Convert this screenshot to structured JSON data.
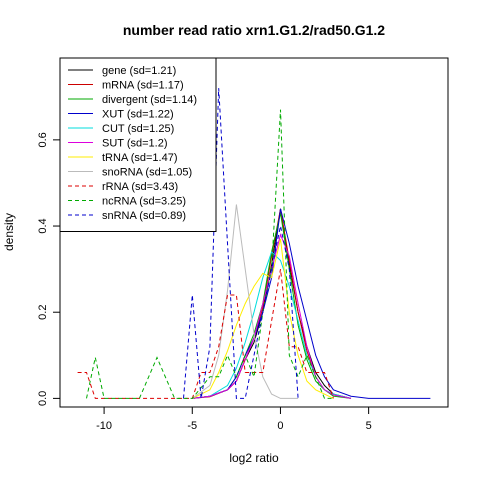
{
  "chart_data": {
    "type": "line",
    "title": "number read ratio xrn1.G1.2/rad50.G1.2",
    "xlabel": "log2 ratio",
    "ylabel": "density",
    "xlim": [
      -12.5,
      9.5
    ],
    "ylim": [
      -0.02,
      0.79
    ],
    "xticks": [
      -10,
      -5,
      0,
      5
    ],
    "xtick_labels": [
      "-10",
      "-5",
      "0",
      "5"
    ],
    "yticks": [
      0.0,
      0.2,
      0.4,
      0.6
    ],
    "ytick_labels": [
      "0.0",
      "0.2",
      "0.4",
      "0.6"
    ],
    "grid": false,
    "legend_position": "top-left",
    "series": [
      {
        "name": "gene (sd=1.21)",
        "color": "#000000",
        "dash": "solid",
        "x": [
          -5,
          -4,
          -3,
          -2.5,
          -2,
          -1.5,
          -1,
          -0.5,
          0,
          0.5,
          1,
          1.5,
          2,
          2.5,
          3,
          4
        ],
        "y": [
          0,
          0.005,
          0.02,
          0.04,
          0.09,
          0.13,
          0.2,
          0.31,
          0.44,
          0.31,
          0.2,
          0.12,
          0.06,
          0.03,
          0.01,
          0
        ]
      },
      {
        "name": "mRNA (sd=1.17)",
        "color": "#cc0000",
        "dash": "solid",
        "x": [
          -5,
          -4,
          -3,
          -2.5,
          -2,
          -1.5,
          -1,
          -0.5,
          0,
          0.5,
          1,
          1.5,
          2,
          2.5,
          3,
          4
        ],
        "y": [
          0,
          0.004,
          0.02,
          0.04,
          0.09,
          0.14,
          0.21,
          0.33,
          0.44,
          0.32,
          0.2,
          0.11,
          0.05,
          0.02,
          0.008,
          0
        ]
      },
      {
        "name": "divergent (sd=1.14)",
        "color": "#00aa00",
        "dash": "solid",
        "x": [
          -5,
          -4,
          -3,
          -2.5,
          -2,
          -1.5,
          -1,
          -0.5,
          0,
          0.5,
          1,
          1.5,
          2,
          2.5,
          3,
          4
        ],
        "y": [
          0,
          0.005,
          0.02,
          0.05,
          0.1,
          0.15,
          0.22,
          0.34,
          0.43,
          0.3,
          0.17,
          0.09,
          0.04,
          0.02,
          0.005,
          0
        ]
      },
      {
        "name": "XUT (sd=1.22)",
        "color": "#0000cc",
        "dash": "solid",
        "x": [
          -5,
          -4,
          -3,
          -2.5,
          -2,
          -1.5,
          -1,
          -0.5,
          0,
          0.5,
          1,
          1.5,
          2,
          2.5,
          3,
          4,
          5,
          8.5
        ],
        "y": [
          0,
          0.005,
          0.02,
          0.05,
          0.1,
          0.14,
          0.2,
          0.28,
          0.44,
          0.36,
          0.26,
          0.18,
          0.1,
          0.05,
          0.02,
          0.005,
          0,
          0
        ]
      },
      {
        "name": "CUT (sd=1.25)",
        "color": "#00dddd",
        "dash": "solid",
        "x": [
          -5,
          -4,
          -3,
          -2.5,
          -2,
          -1.5,
          -1,
          -0.5,
          0,
          0.5,
          1,
          1.5,
          2,
          2.5,
          3,
          4
        ],
        "y": [
          0,
          0.005,
          0.03,
          0.07,
          0.13,
          0.2,
          0.28,
          0.34,
          0.32,
          0.26,
          0.18,
          0.1,
          0.05,
          0.02,
          0.01,
          0
        ]
      },
      {
        "name": "SUT (sd=1.2)",
        "color": "#dd00dd",
        "dash": "solid",
        "x": [
          -5,
          -4,
          -3,
          -2.5,
          -2,
          -1.5,
          -1,
          -0.5,
          0,
          0.5,
          1,
          1.5,
          2,
          2.5,
          3,
          4
        ],
        "y": [
          0,
          0.005,
          0.02,
          0.04,
          0.09,
          0.14,
          0.22,
          0.3,
          0.38,
          0.33,
          0.22,
          0.12,
          0.05,
          0.02,
          0.008,
          0
        ]
      },
      {
        "name": "tRNA (sd=1.47)",
        "color": "#ffee00",
        "dash": "solid",
        "x": [
          -5,
          -4,
          -3.5,
          -3,
          -2.5,
          -2,
          -1.5,
          -1,
          -0.5,
          0,
          0.5,
          1,
          1.5,
          2,
          3
        ],
        "y": [
          0,
          0.02,
          0.06,
          0.11,
          0.17,
          0.22,
          0.26,
          0.29,
          0.28,
          0.37,
          0.2,
          0.1,
          0.04,
          0.02,
          0
        ]
      },
      {
        "name": "snoRNA (sd=1.05)",
        "color": "#bbbbbb",
        "dash": "solid",
        "x": [
          -5,
          -4,
          -3.5,
          -3,
          -2.5,
          -2,
          -1.5,
          -1,
          -0.5,
          0,
          0.5,
          1
        ],
        "y": [
          0,
          0.03,
          0.1,
          0.25,
          0.45,
          0.3,
          0.15,
          0.05,
          0.01,
          0,
          0,
          0
        ]
      },
      {
        "name": "rRNA (sd=3.43)",
        "color": "#dd0000",
        "dash": "dashed",
        "x": [
          -11.5,
          -11,
          -10.5,
          -10,
          -5,
          -4.5,
          -4,
          -3.5,
          -3,
          -2.5,
          -2,
          -1.5,
          -1,
          -0.5,
          0,
          0.5,
          1,
          1.5,
          2,
          2.5,
          3
        ],
        "y": [
          0.06,
          0.06,
          0,
          0,
          0,
          0.06,
          0.06,
          0.12,
          0.24,
          0.24,
          0.06,
          0.06,
          0.06,
          0.18,
          0.3,
          0.12,
          0.12,
          0.06,
          0.06,
          0.06,
          0
        ]
      },
      {
        "name": "ncRNA (sd=3.25)",
        "color": "#00aa00",
        "dash": "dashed",
        "x": [
          -11,
          -10.5,
          -10,
          -8,
          -7,
          -6,
          -5,
          -4,
          -3.5,
          -3,
          -2.5,
          -2,
          -1.5,
          -1,
          -0.5,
          0,
          0.5,
          1,
          1.5,
          2,
          2.5,
          3
        ],
        "y": [
          0,
          0.095,
          0,
          0,
          0.095,
          0,
          0,
          0.05,
          0.05,
          0.1,
          0.05,
          0.1,
          0.05,
          0.2,
          0.3,
          0.67,
          0.1,
          0.05,
          0.1,
          0.05,
          0,
          0
        ]
      },
      {
        "name": "snRNA (sd=0.89)",
        "color": "#0000cc",
        "dash": "dashed",
        "x": [
          -5.5,
          -5,
          -4.5,
          -4,
          -3.5,
          -3,
          -2.5,
          -2,
          -1.5,
          -1,
          -0.5,
          0,
          0.5,
          1
        ],
        "y": [
          0,
          0.24,
          0,
          0.12,
          0.72,
          0.36,
          0,
          0,
          0.1,
          0.2,
          0.3,
          0.4,
          0.3,
          0
        ]
      }
    ]
  },
  "colors": {
    "background": "#ffffff",
    "axis": "#000000"
  }
}
